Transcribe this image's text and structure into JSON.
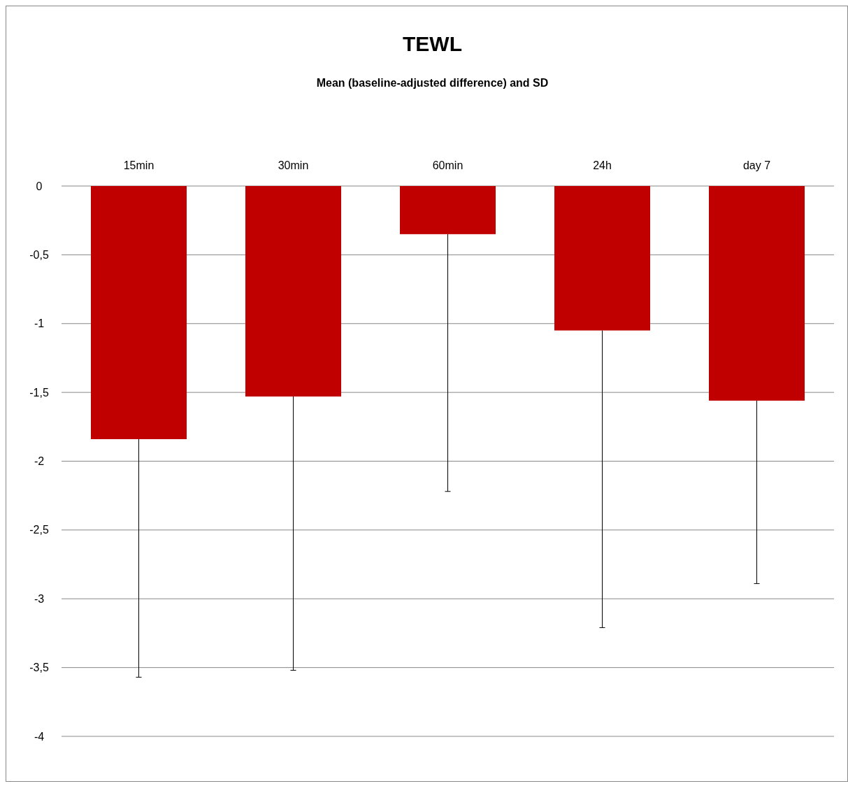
{
  "chart_data": {
    "type": "bar",
    "title": "TEWL",
    "subtitle": "Mean (baseline-adjusted difference) and SD",
    "categories": [
      "15min",
      "30min",
      "60min",
      "24h",
      "day 7"
    ],
    "values": [
      -1.84,
      -1.53,
      -0.35,
      -1.05,
      -1.56
    ],
    "errors": [
      [
        -3.57,
        -1.84
      ],
      [
        -3.52,
        -1.53
      ],
      [
        -2.22,
        -0.35
      ],
      [
        -3.21,
        -1.05
      ],
      [
        -2.89,
        -1.56
      ]
    ],
    "color": "#c00000",
    "ylim": [
      -4,
      0
    ],
    "yticks": [
      {
        "value": 0,
        "label": "0"
      },
      {
        "value": -0.5,
        "label": "-0,5"
      },
      {
        "value": -1,
        "label": "-1"
      },
      {
        "value": -1.5,
        "label": "-1,5"
      },
      {
        "value": -2,
        "label": "-2"
      },
      {
        "value": -2.5,
        "label": "-2,5"
      },
      {
        "value": -3,
        "label": "-3"
      },
      {
        "value": -3.5,
        "label": "-3,5"
      },
      {
        "value": -4,
        "label": "-4"
      }
    ],
    "grid": "y"
  }
}
